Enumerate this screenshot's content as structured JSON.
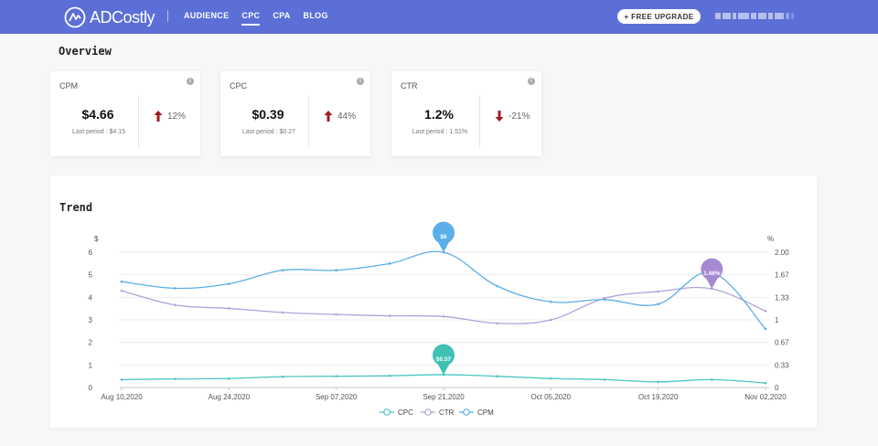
{
  "header": {
    "brand": "ADCostly",
    "nav": [
      {
        "label": "AUDIENCE",
        "active": false
      },
      {
        "label": "CPC",
        "active": true
      },
      {
        "label": "CPA",
        "active": false
      },
      {
        "label": "BLOG",
        "active": false
      }
    ],
    "upgrade_label": "+ FREE UPGRADE"
  },
  "overview": {
    "title": "Overview",
    "cards": [
      {
        "label": "CPM",
        "value": "$4.66",
        "last_period": "Last period : $4.15",
        "change": "12%",
        "direction": "up"
      },
      {
        "label": "CPC",
        "value": "$0.39",
        "last_period": "Last period : $0.27",
        "change": "44%",
        "direction": "up"
      },
      {
        "label": "CTR",
        "value": "1.2%",
        "last_period": "Last period : 1.51%",
        "change": "-21%",
        "direction": "down"
      }
    ]
  },
  "trend": {
    "title": "Trend",
    "chart_data": {
      "type": "line",
      "y_left_label": "$",
      "y_right_label": "%",
      "y_left_ticks": [
        "0",
        "1",
        "2",
        "3",
        "4",
        "5",
        "6"
      ],
      "y_right_ticks": [
        "0",
        "0.33",
        "0.67",
        "1",
        "1.33",
        "1.67",
        "2.00"
      ],
      "ylim_left": [
        0,
        6
      ],
      "ylim_right": [
        0,
        2
      ],
      "x_tick_labels": [
        "Aug 10,2020",
        "Aug 24,2020",
        "Sep 07,2020",
        "Sep 21,2020",
        "Oct 05,2020",
        "Oct 19,2020",
        "Nov 02,2020"
      ],
      "x": [
        "2020-08-10",
        "2020-08-17",
        "2020-08-24",
        "2020-08-31",
        "2020-09-07",
        "2020-09-14",
        "2020-09-21",
        "2020-09-28",
        "2020-10-05",
        "2020-10-12",
        "2020-10-19",
        "2020-10-26",
        "2020-11-02"
      ],
      "series": [
        {
          "name": "CPC",
          "axis": "left",
          "color": "#4bc5c0",
          "values": [
            0.35,
            0.38,
            0.4,
            0.48,
            0.5,
            0.52,
            0.57,
            0.5,
            0.4,
            0.35,
            0.25,
            0.35,
            0.2
          ]
        },
        {
          "name": "CTR",
          "axis": "right",
          "color": "#b3a1d8",
          "values": [
            1.43,
            1.22,
            1.17,
            1.11,
            1.08,
            1.06,
            1.05,
            0.95,
            1.0,
            1.32,
            1.42,
            1.46,
            1.13
          ]
        },
        {
          "name": "CPM",
          "axis": "left",
          "color": "#5aafe8",
          "values": [
            4.7,
            4.4,
            4.6,
            5.2,
            5.2,
            5.5,
            6.0,
            4.5,
            3.8,
            3.9,
            3.7,
            5.1,
            2.6
          ]
        }
      ],
      "callouts": [
        {
          "series": "CPM",
          "x": "2020-09-21",
          "label": "$6",
          "color": "#5aafe8"
        },
        {
          "series": "CTR",
          "x": "2020-10-26",
          "label": "1.46%",
          "color": "#a58ad2"
        },
        {
          "series": "CPC",
          "x": "2020-09-21",
          "label": "$0.57",
          "color": "#3fc1b4"
        }
      ],
      "legend_position": "bottom-center",
      "grid": true
    }
  }
}
